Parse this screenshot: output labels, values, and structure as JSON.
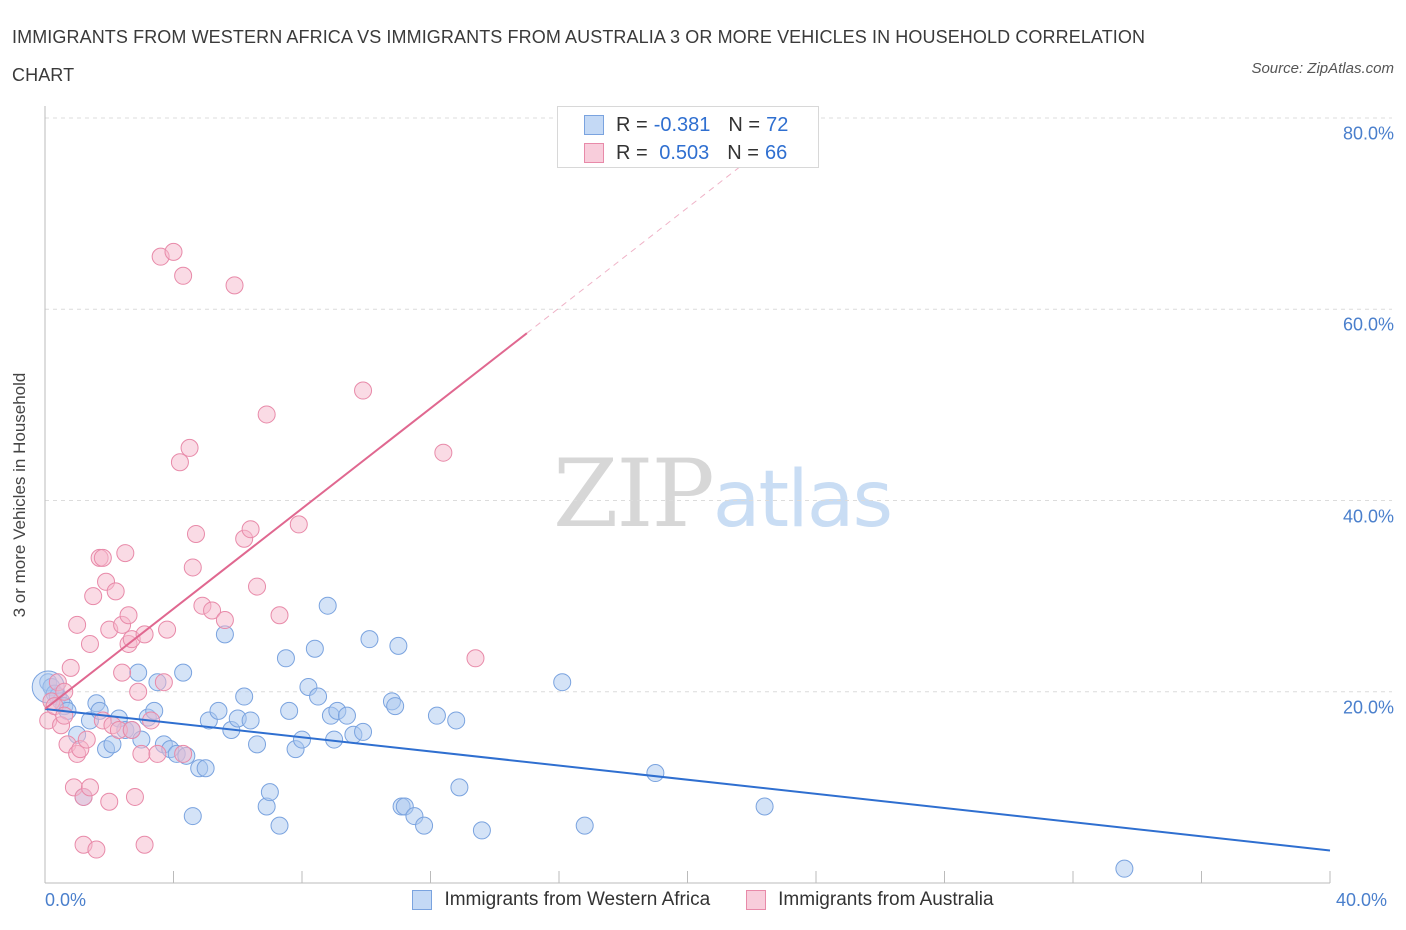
{
  "title": "IMMIGRANTS FROM WESTERN AFRICA VS IMMIGRANTS FROM AUSTRALIA 3 OR MORE VEHICLES IN HOUSEHOLD CORRELATION CHART",
  "source": "Source: ZipAtlas.com",
  "watermark": {
    "zip": "ZIP",
    "atlas": "atlas"
  },
  "colors": {
    "blue_fill": "#aac8f0",
    "blue_stroke": "#7aa3df",
    "blue_line": "#2f6fd0",
    "pink_fill": "#f5b8cc",
    "pink_stroke": "#e88aa9",
    "pink_line": "#e06890",
    "grid": "#dcdcdc",
    "tick_label": "#4a7fcc"
  },
  "legend_top": {
    "rows": [
      {
        "r_label": "R =",
        "r_value": "-0.381",
        "n_label": "N =",
        "n_value": "72"
      },
      {
        "r_label": "R =",
        "r_value": " 0.503",
        "n_label": "N =",
        "n_value": "66"
      }
    ]
  },
  "chart_data": {
    "type": "scatter",
    "title": "IMMIGRANTS FROM WESTERN AFRICA VS IMMIGRANTS FROM AUSTRALIA 3 OR MORE VEHICLES IN HOUSEHOLD CORRELATION CHART",
    "xlabel": "",
    "ylabel": "3 or more Vehicles in Household",
    "xlim": [
      0,
      40
    ],
    "ylim": [
      0,
      80
    ],
    "x_tick_labels": [
      "0.0%",
      "40.0%"
    ],
    "y_tick_labels": [
      "20.0%",
      "40.0%",
      "60.0%",
      "80.0%"
    ],
    "y_tick_values": [
      20,
      40,
      60,
      80
    ],
    "grid": true,
    "legend_position": "bottom",
    "series": [
      {
        "name": "Immigrants from Western Africa",
        "color": "#aac8f0",
        "r": "-0.381",
        "n": "72",
        "trend": {
          "x0": 0,
          "y0": 18.2,
          "x1": 40,
          "y1": 3.4,
          "dashed_from": null
        },
        "points": [
          [
            0.1,
            21.0
          ],
          [
            0.2,
            20.5
          ],
          [
            0.3,
            19.8
          ],
          [
            0.4,
            19.5
          ],
          [
            0.5,
            19.0
          ],
          [
            0.6,
            18.5
          ],
          [
            0.7,
            18.0
          ],
          [
            1.0,
            15.5
          ],
          [
            1.2,
            9.0
          ],
          [
            1.4,
            17.0
          ],
          [
            1.6,
            18.8
          ],
          [
            1.7,
            18.0
          ],
          [
            1.9,
            14.0
          ],
          [
            2.1,
            14.5
          ],
          [
            2.3,
            17.2
          ],
          [
            2.5,
            16.0
          ],
          [
            2.7,
            16.0
          ],
          [
            2.9,
            22.0
          ],
          [
            3.0,
            15.0
          ],
          [
            3.2,
            17.3
          ],
          [
            3.4,
            18.0
          ],
          [
            3.5,
            21.0
          ],
          [
            3.7,
            14.5
          ],
          [
            3.9,
            14.0
          ],
          [
            4.1,
            13.5
          ],
          [
            4.3,
            22.0
          ],
          [
            4.4,
            13.3
          ],
          [
            4.6,
            7.0
          ],
          [
            4.8,
            12.0
          ],
          [
            5.0,
            12.0
          ],
          [
            5.1,
            17.0
          ],
          [
            5.4,
            18.0
          ],
          [
            5.6,
            26.0
          ],
          [
            5.8,
            16.0
          ],
          [
            6.0,
            17.2
          ],
          [
            6.2,
            19.5
          ],
          [
            6.4,
            17.0
          ],
          [
            6.6,
            14.5
          ],
          [
            6.9,
            8.0
          ],
          [
            7.0,
            9.5
          ],
          [
            7.3,
            6.0
          ],
          [
            7.5,
            23.5
          ],
          [
            7.6,
            18.0
          ],
          [
            7.8,
            14.0
          ],
          [
            8.0,
            15.0
          ],
          [
            8.2,
            20.5
          ],
          [
            8.4,
            24.5
          ],
          [
            8.5,
            19.5
          ],
          [
            8.8,
            29.0
          ],
          [
            8.9,
            17.5
          ],
          [
            9.1,
            18.0
          ],
          [
            9.4,
            17.5
          ],
          [
            9.6,
            15.5
          ],
          [
            9.9,
            15.8
          ],
          [
            10.1,
            25.5
          ],
          [
            10.8,
            19.0
          ],
          [
            10.9,
            18.5
          ],
          [
            11.1,
            8.0
          ],
          [
            11.2,
            8.0
          ],
          [
            11.5,
            7.0
          ],
          [
            11.8,
            6.0
          ],
          [
            12.2,
            17.5
          ],
          [
            12.8,
            17.0
          ],
          [
            12.9,
            10.0
          ],
          [
            13.6,
            5.5
          ],
          [
            16.1,
            21.0
          ],
          [
            16.8,
            6.0
          ],
          [
            19.0,
            11.5
          ],
          [
            22.4,
            8.0
          ],
          [
            33.6,
            1.5
          ],
          [
            11.0,
            24.8
          ],
          [
            9.0,
            15.0
          ]
        ]
      },
      {
        "name": "Immigrants from Australia",
        "color": "#f5b8cc",
        "r": " 0.503",
        "n": "66",
        "trend": {
          "x0": 0,
          "y0": 18.2,
          "x1": 15.0,
          "y1": 57.5,
          "dashed_to": [
            21.9,
            75.6
          ]
        },
        "points": [
          [
            0.1,
            17.0
          ],
          [
            0.2,
            19.0
          ],
          [
            0.3,
            18.5
          ],
          [
            0.4,
            21.0
          ],
          [
            0.5,
            16.5
          ],
          [
            0.6,
            20.0
          ],
          [
            0.7,
            14.5
          ],
          [
            0.8,
            22.5
          ],
          [
            0.9,
            10.0
          ],
          [
            1.0,
            13.5
          ],
          [
            1.0,
            27.0
          ],
          [
            1.1,
            14.0
          ],
          [
            1.2,
            9.0
          ],
          [
            1.2,
            4.0
          ],
          [
            1.4,
            25.0
          ],
          [
            1.4,
            10.0
          ],
          [
            1.5,
            30.0
          ],
          [
            1.6,
            3.5
          ],
          [
            1.7,
            34.0
          ],
          [
            1.8,
            17.0
          ],
          [
            1.8,
            34.0
          ],
          [
            1.9,
            31.5
          ],
          [
            2.0,
            8.5
          ],
          [
            2.0,
            26.5
          ],
          [
            2.1,
            16.5
          ],
          [
            2.2,
            30.5
          ],
          [
            2.3,
            16.0
          ],
          [
            2.4,
            22.0
          ],
          [
            2.4,
            27.0
          ],
          [
            2.5,
            34.5
          ],
          [
            2.6,
            28.0
          ],
          [
            2.6,
            25.0
          ],
          [
            2.7,
            25.5
          ],
          [
            2.8,
            9.0
          ],
          [
            2.9,
            20.0
          ],
          [
            3.0,
            13.5
          ],
          [
            3.1,
            4.0
          ],
          [
            3.1,
            26.0
          ],
          [
            3.3,
            17.0
          ],
          [
            3.5,
            13.5
          ],
          [
            3.6,
            65.5
          ],
          [
            3.7,
            21.0
          ],
          [
            3.8,
            26.5
          ],
          [
            4.0,
            66.0
          ],
          [
            4.2,
            44.0
          ],
          [
            4.3,
            63.5
          ],
          [
            4.3,
            13.5
          ],
          [
            4.5,
            45.5
          ],
          [
            4.6,
            33.0
          ],
          [
            4.7,
            36.5
          ],
          [
            4.9,
            29.0
          ],
          [
            5.2,
            28.5
          ],
          [
            5.6,
            27.5
          ],
          [
            5.9,
            62.5
          ],
          [
            6.2,
            36.0
          ],
          [
            6.4,
            37.0
          ],
          [
            6.6,
            31.0
          ],
          [
            6.9,
            49.0
          ],
          [
            7.3,
            28.0
          ],
          [
            7.9,
            37.5
          ],
          [
            9.9,
            51.5
          ],
          [
            12.4,
            45.0
          ],
          [
            13.4,
            23.5
          ],
          [
            2.7,
            16.0
          ],
          [
            0.6,
            17.5
          ],
          [
            1.3,
            15.0
          ]
        ]
      }
    ]
  }
}
